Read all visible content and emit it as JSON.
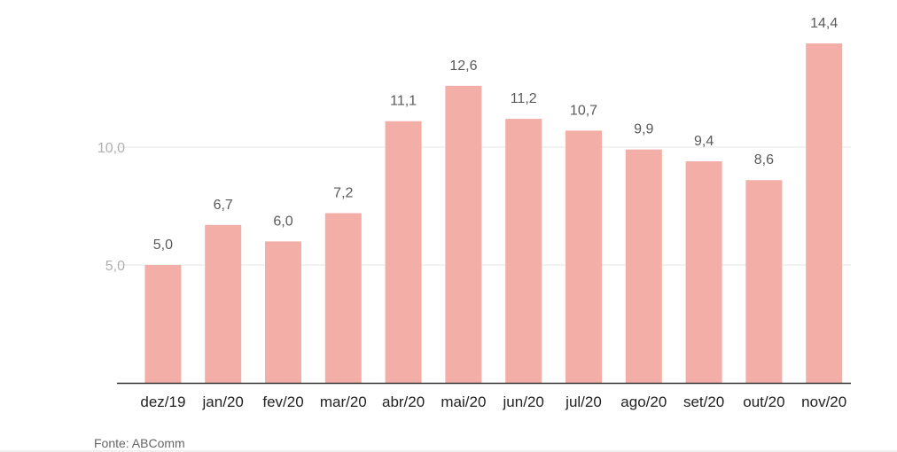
{
  "chart_data": {
    "type": "bar",
    "categories": [
      "dez/19",
      "jan/20",
      "fev/20",
      "mar/20",
      "abr/20",
      "mai/20",
      "jun/20",
      "jul/20",
      "ago/20",
      "set/20",
      "out/20",
      "nov/20"
    ],
    "values": [
      5.0,
      6.7,
      6.0,
      7.2,
      11.1,
      12.6,
      11.2,
      10.7,
      9.9,
      9.4,
      8.6,
      14.4
    ],
    "value_labels": [
      "5,0",
      "6,7",
      "6,0",
      "7,2",
      "11,1",
      "12,6",
      "11,2",
      "10,7",
      "9,9",
      "9,4",
      "8,6",
      "14,4"
    ],
    "title": "",
    "xlabel": "",
    "ylabel": "",
    "ylim": [
      0,
      15
    ],
    "yticks": [
      5,
      10
    ],
    "ytick_labels": [
      "5,0",
      "10,0"
    ],
    "grid": true,
    "bar_color": "#f2aea7",
    "grid_color": "#e6e6e6",
    "axis_color": "#333333"
  },
  "source": "Fonte: ABComm"
}
